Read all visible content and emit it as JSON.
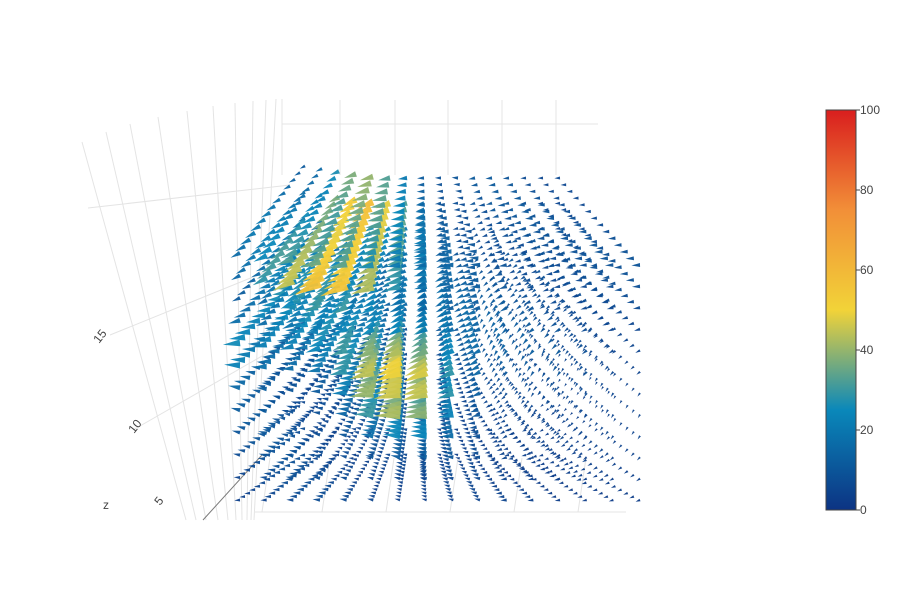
{
  "chart_data": {
    "type": "cone",
    "title": "",
    "scene": {
      "z_axis": {
        "title": "z",
        "tick_labels": [
          "5",
          "10",
          "15"
        ]
      },
      "grid": true
    },
    "colorscale": {
      "name": "Portland",
      "stops": [
        [
          0.0,
          "#0c3383"
        ],
        [
          0.25,
          "#0a88ba"
        ],
        [
          0.5,
          "#f2d338"
        ],
        [
          0.75,
          "#f28f38"
        ],
        [
          1.0,
          "#d91e1e"
        ]
      ]
    },
    "colorbar": {
      "cmin": 0,
      "cmax": 100,
      "tick_labels": [
        "0",
        "20",
        "40",
        "60",
        "80",
        "100"
      ],
      "tick_values": [
        0,
        20,
        40,
        60,
        80,
        100
      ]
    },
    "series": [
      {
        "grid_x": 16,
        "grid_y": 12,
        "grid_z": 14,
        "magnitude_range": [
          0,
          58
        ],
        "hotspot_peak_magnitude": 58
      }
    ]
  }
}
